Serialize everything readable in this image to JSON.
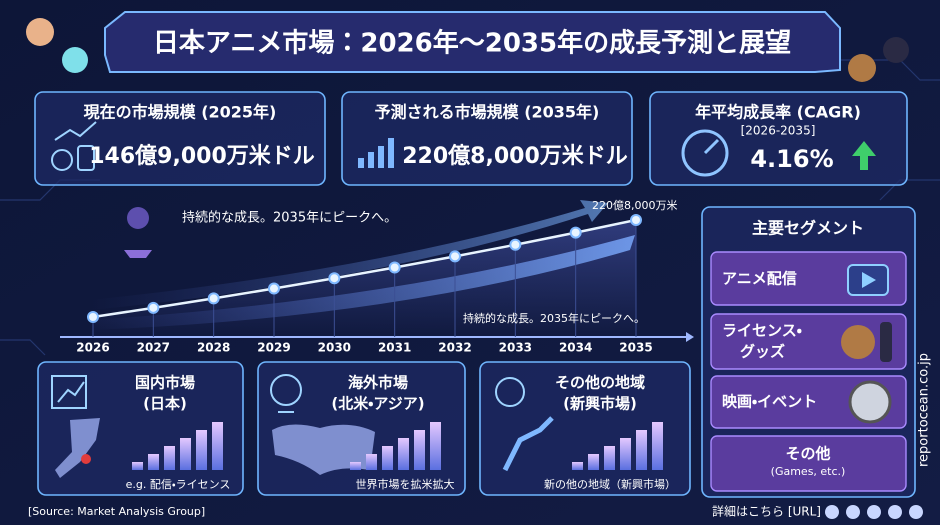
{
  "title": "日本アニメ市場：2026年〜2035年の成長予測と展望",
  "kpis": [
    {
      "label": "現在の市場規模 (2025年)",
      "value": "146億9,000万米ドル"
    },
    {
      "label": "予測される市場規模 (2035年)",
      "value": "220億8,000万米ドル"
    },
    {
      "label": "年平均成長率 (CAGR)",
      "sublabel": "[2026-2035]",
      "value": "4.16%"
    }
  ],
  "chart_data": {
    "type": "line",
    "categories": [
      "2026",
      "2027",
      "2028",
      "2029",
      "2030",
      "2031",
      "2032",
      "2033",
      "2034",
      "2035"
    ],
    "values": [
      153.0,
      159.4,
      166.0,
      172.9,
      180.1,
      187.6,
      195.4,
      203.5,
      212.0,
      220.8
    ],
    "color": "#e8f4ff",
    "annotation_top": "持続的な成長。2035年にピークへ。",
    "annotation_bottom": "持続的な成長。2035年にピークへ。",
    "end_label": "220億8,000万米"
  },
  "regions": [
    {
      "title": [
        "国内市場",
        "(日本)"
      ],
      "note": "e.g. 配信・ライセンス"
    },
    {
      "title": [
        "海外市場",
        "(北米・アジア)"
      ],
      "note": "世界市場を拡米拡大"
    },
    {
      "title": [
        "その他の地域",
        "(新興市場)"
      ],
      "note": "新の他の地域（新興市場）"
    }
  ],
  "segments": {
    "title": "主要セグメント",
    "items": [
      [
        "アニメ配信"
      ],
      [
        "ライセンス・",
        "グッズ"
      ],
      [
        "映画・イベント"
      ],
      [
        "その他",
        "(Games, etc.)"
      ]
    ]
  },
  "source": "[Source: Market Analysis Group]",
  "link": "詳細はこちら [URL]",
  "site": "reportocean.co.jp"
}
